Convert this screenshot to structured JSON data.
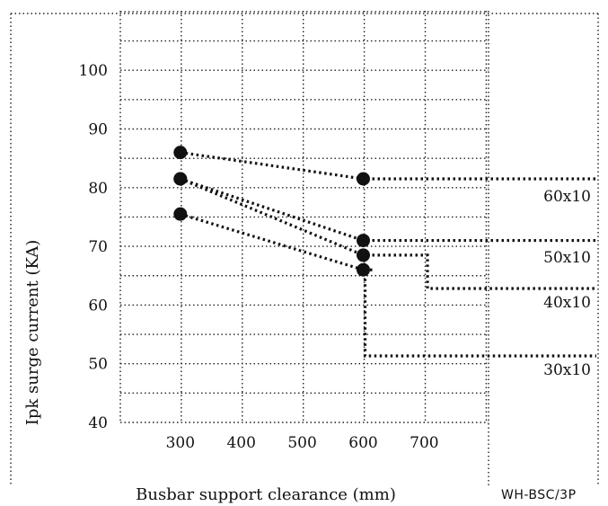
{
  "chart_data": {
    "type": "scatter",
    "xlabel": "Busbar support clearance (mm)",
    "ylabel": "Ipk surge current (KA)",
    "x_ticks": [
      300,
      400,
      500,
      600,
      700
    ],
    "y_ticks": [
      40,
      50,
      60,
      70,
      80,
      90,
      100
    ],
    "xlim": [
      200,
      900
    ],
    "ylim": [
      40,
      110
    ],
    "grid": true,
    "series": [
      {
        "name": "60x10",
        "points": [
          [
            300,
            86
          ],
          [
            600,
            81.5
          ]
        ]
      },
      {
        "name": "50x10",
        "points": [
          [
            300,
            81.5
          ],
          [
            600,
            71
          ]
        ]
      },
      {
        "name": "40x10",
        "points": [
          [
            300,
            81.5
          ],
          [
            600,
            68.5
          ]
        ]
      },
      {
        "name": "30x10",
        "points": [
          [
            300,
            75.5
          ],
          [
            600,
            66
          ]
        ]
      }
    ]
  },
  "footer": {
    "code": "WH-BSC/3P"
  }
}
